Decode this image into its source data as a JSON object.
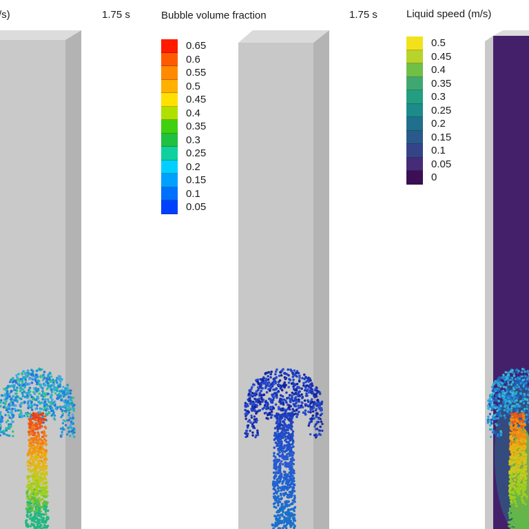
{
  "time_label_left": "1.75 s",
  "time_label_right": "1.75 s",
  "partial_title_left": "/s)",
  "legend_bubble": {
    "title": "Bubble volume fraction",
    "ticks": [
      "0.65",
      "0.6",
      "0.55",
      "0.5",
      "0.45",
      "0.4",
      "0.35",
      "0.3",
      "0.25",
      "0.2",
      "0.15",
      "0.1",
      "0.05"
    ],
    "colors": [
      "#ff1a00",
      "#ff5a00",
      "#ff8a00",
      "#ffb000",
      "#ffe000",
      "#b0e000",
      "#40d010",
      "#20c040",
      "#10d0a0",
      "#00d0ff",
      "#00a0ff",
      "#0070ff",
      "#0040ff"
    ]
  },
  "legend_speed": {
    "title": "Liquid speed (m/s)",
    "ticks": [
      "0.5",
      "0.45",
      "0.4",
      "0.35",
      "0.3",
      "0.25",
      "0.2",
      "0.15",
      "0.1",
      "0.05",
      "0"
    ],
    "colors": [
      "#f2e21c",
      "#b8d32a",
      "#70bf46",
      "#3fa872",
      "#239e82",
      "#1d8a8b",
      "#206f8d",
      "#2a5a8c",
      "#354489",
      "#452b78",
      "#3b0f54"
    ]
  }
}
